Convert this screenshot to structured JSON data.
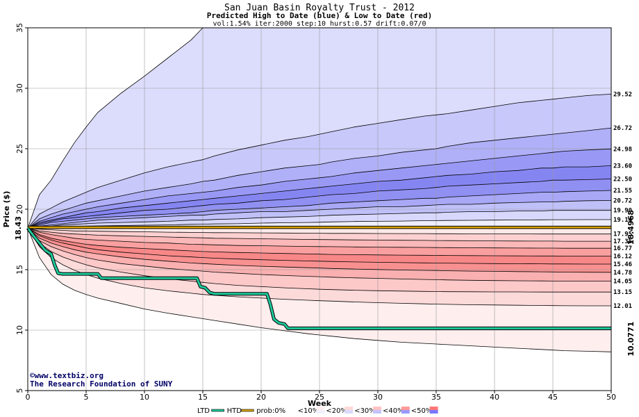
{
  "chart_data": {
    "type": "area",
    "title": "San Juan Basin Royalty Trust - 2012",
    "subtitle": "Predicted High to Date (blue) &  Low to Date (red)",
    "params": "vol:1.54% iter:2000 step:10 hurst:0.57 drift:0.07/0",
    "xlabel": "Week",
    "ylabel": "Price ($)",
    "xlim": [
      0,
      50
    ],
    "ylim": [
      5,
      35
    ],
    "xticks": [
      0,
      5,
      10,
      15,
      20,
      25,
      30,
      35,
      40,
      45,
      50
    ],
    "yticks": [
      5,
      10,
      15,
      20,
      25,
      30,
      35
    ],
    "grid": true,
    "start_price": 18.43,
    "start_label": "18.43",
    "x": [
      0,
      1,
      2,
      3,
      4,
      5,
      6,
      8,
      10,
      12,
      14,
      15,
      16,
      18,
      20,
      22,
      24,
      25,
      26,
      28,
      30,
      32,
      34,
      35,
      36,
      38,
      40,
      42,
      44,
      45,
      46,
      48,
      50
    ],
    "high_bands": [
      {
        "label": "35.00",
        "values": [
          18.43,
          21.2,
          22.4,
          24.0,
          25.5,
          26.8,
          28.0,
          29.6,
          31.0,
          32.5,
          34.0,
          35.0,
          35.0,
          35.0,
          35.0,
          35.0,
          35.0,
          35.0,
          35.0,
          35.0,
          35.0,
          35.0,
          35.0,
          35.0,
          35.0,
          35.0,
          35.0,
          35.0,
          35.0,
          35.0,
          35.0,
          35.0,
          35.0
        ]
      },
      {
        "label": "29.52",
        "values": [
          18.43,
          19.6,
          20.1,
          20.6,
          21.0,
          21.4,
          21.8,
          22.4,
          23.0,
          23.5,
          23.9,
          24.1,
          24.4,
          24.9,
          25.3,
          25.7,
          26.0,
          26.2,
          26.4,
          26.8,
          27.1,
          27.4,
          27.7,
          27.8,
          27.9,
          28.2,
          28.5,
          28.8,
          29.0,
          29.1,
          29.2,
          29.4,
          29.52
        ]
      },
      {
        "label": "26.72",
        "values": [
          18.43,
          19.2,
          19.6,
          19.9,
          20.2,
          20.5,
          20.7,
          21.1,
          21.5,
          21.8,
          22.1,
          22.3,
          22.4,
          22.8,
          23.1,
          23.4,
          23.6,
          23.7,
          23.9,
          24.2,
          24.4,
          24.7,
          24.9,
          25.0,
          25.2,
          25.5,
          25.7,
          25.9,
          26.1,
          26.2,
          26.3,
          26.5,
          26.72
        ]
      },
      {
        "label": "24.98",
        "values": [
          18.43,
          19.0,
          19.3,
          19.6,
          19.8,
          20.0,
          20.2,
          20.5,
          20.8,
          21.1,
          21.3,
          21.4,
          21.5,
          21.8,
          22.0,
          22.3,
          22.5,
          22.6,
          22.7,
          23.0,
          23.2,
          23.4,
          23.6,
          23.7,
          23.8,
          24.0,
          24.2,
          24.4,
          24.6,
          24.7,
          24.8,
          24.9,
          24.98
        ]
      },
      {
        "label": "23.60",
        "values": [
          18.43,
          18.9,
          19.1,
          19.3,
          19.5,
          19.7,
          19.8,
          20.1,
          20.3,
          20.5,
          20.7,
          20.8,
          20.9,
          21.1,
          21.3,
          21.5,
          21.7,
          21.8,
          21.9,
          22.1,
          22.3,
          22.4,
          22.6,
          22.7,
          22.8,
          22.9,
          23.1,
          23.2,
          23.4,
          23.4,
          23.5,
          23.5,
          23.6
        ]
      },
      {
        "label": "22.50",
        "values": [
          18.43,
          18.8,
          19.0,
          19.2,
          19.3,
          19.4,
          19.5,
          19.7,
          19.9,
          20.0,
          20.2,
          20.3,
          20.4,
          20.5,
          20.7,
          20.8,
          21.0,
          21.1,
          21.2,
          21.3,
          21.5,
          21.6,
          21.7,
          21.8,
          21.9,
          22.0,
          22.1,
          22.2,
          22.3,
          22.4,
          22.4,
          22.45,
          22.5
        ]
      },
      {
        "label": "21.55",
        "values": [
          18.43,
          18.7,
          18.9,
          19.0,
          19.1,
          19.2,
          19.3,
          19.4,
          19.5,
          19.6,
          19.7,
          19.8,
          19.9,
          20.0,
          20.1,
          20.2,
          20.3,
          20.4,
          20.5,
          20.6,
          20.7,
          20.8,
          20.9,
          20.9,
          21.0,
          21.1,
          21.2,
          21.3,
          21.4,
          21.4,
          21.45,
          21.5,
          21.55
        ]
      },
      {
        "label": "20.72",
        "values": [
          18.43,
          18.6,
          18.7,
          18.8,
          18.9,
          19.0,
          19.1,
          19.2,
          19.3,
          19.4,
          19.5,
          19.5,
          19.6,
          19.7,
          19.8,
          19.8,
          19.9,
          19.95,
          20.0,
          20.1,
          20.2,
          20.2,
          20.3,
          20.35,
          20.4,
          20.4,
          20.5,
          20.55,
          20.6,
          20.6,
          20.65,
          20.7,
          20.72
        ]
      },
      {
        "label": "19.90",
        "values": [
          18.43,
          18.5,
          18.6,
          18.7,
          18.75,
          18.8,
          18.85,
          18.9,
          18.95,
          19.0,
          19.1,
          19.1,
          19.15,
          19.2,
          19.3,
          19.35,
          19.4,
          19.45,
          19.5,
          19.55,
          19.6,
          19.65,
          19.7,
          19.7,
          19.75,
          19.8,
          19.8,
          19.85,
          19.85,
          19.9,
          19.9,
          19.9,
          19.9
        ]
      },
      {
        "label": "19.14",
        "values": [
          18.43,
          18.45,
          18.5,
          18.55,
          18.6,
          18.6,
          18.62,
          18.65,
          18.68,
          18.7,
          18.75,
          18.76,
          18.78,
          18.8,
          18.85,
          18.88,
          18.9,
          18.92,
          18.95,
          18.98,
          19.0,
          19.02,
          19.05,
          19.06,
          19.07,
          19.08,
          19.1,
          19.11,
          19.12,
          19.13,
          19.13,
          19.14,
          19.14
        ]
      }
    ],
    "low_bands": [
      {
        "label": "17.95",
        "values": [
          18.43,
          18.35,
          18.3,
          18.25,
          18.2,
          18.2,
          18.18,
          18.15,
          18.13,
          18.1,
          18.08,
          18.07,
          18.06,
          18.05,
          18.04,
          18.03,
          18.02,
          18.01,
          18.0,
          18.0,
          17.99,
          17.98,
          17.98,
          17.97,
          17.97,
          17.96,
          17.96,
          17.96,
          17.95,
          17.95,
          17.95,
          17.95,
          17.95
        ]
      },
      {
        "label": "17.35",
        "values": [
          18.43,
          18.2,
          18.1,
          18.0,
          17.95,
          17.9,
          17.85,
          17.8,
          17.75,
          17.7,
          17.65,
          17.63,
          17.6,
          17.58,
          17.55,
          17.53,
          17.5,
          17.49,
          17.48,
          17.46,
          17.45,
          17.43,
          17.42,
          17.41,
          17.4,
          17.39,
          17.38,
          17.37,
          17.36,
          17.36,
          17.35,
          17.35,
          17.35
        ]
      },
      {
        "label": "16.77",
        "values": [
          18.43,
          18.1,
          17.9,
          17.75,
          17.6,
          17.5,
          17.45,
          17.35,
          17.25,
          17.2,
          17.1,
          17.08,
          17.05,
          17.0,
          16.98,
          16.95,
          16.92,
          16.91,
          16.9,
          16.88,
          16.86,
          16.85,
          16.84,
          16.83,
          16.82,
          16.81,
          16.8,
          16.79,
          16.78,
          16.78,
          16.77,
          16.77,
          16.77
        ]
      },
      {
        "label": "16.12",
        "values": [
          18.43,
          17.9,
          17.6,
          17.4,
          17.25,
          17.1,
          17.0,
          16.85,
          16.75,
          16.65,
          16.55,
          16.5,
          16.47,
          16.42,
          16.38,
          16.34,
          16.3,
          16.28,
          16.26,
          16.24,
          16.22,
          16.2,
          16.19,
          16.18,
          16.17,
          16.16,
          16.15,
          16.14,
          16.13,
          16.13,
          16.12,
          16.12,
          16.12
        ]
      },
      {
        "label": "15.46",
        "values": [
          18.43,
          17.8,
          17.45,
          17.2,
          17.0,
          16.8,
          16.65,
          16.45,
          16.3,
          16.15,
          16.05,
          16.0,
          15.95,
          15.88,
          15.82,
          15.77,
          15.72,
          15.7,
          15.68,
          15.64,
          15.61,
          15.58,
          15.56,
          15.55,
          15.54,
          15.52,
          15.5,
          15.49,
          15.48,
          15.47,
          15.47,
          15.46,
          15.46
        ]
      },
      {
        "label": "14.78",
        "values": [
          18.43,
          17.6,
          17.2,
          16.9,
          16.65,
          16.45,
          16.3,
          16.05,
          15.85,
          15.7,
          15.55,
          15.5,
          15.45,
          15.35,
          15.28,
          15.22,
          15.16,
          15.13,
          15.1,
          15.05,
          15.01,
          14.97,
          14.94,
          14.93,
          14.91,
          14.88,
          14.86,
          14.84,
          14.82,
          14.81,
          14.8,
          14.79,
          14.78
        ]
      },
      {
        "label": "14.05",
        "values": [
          18.43,
          17.4,
          16.9,
          16.55,
          16.25,
          16.0,
          15.8,
          15.5,
          15.3,
          15.1,
          14.95,
          14.88,
          14.8,
          14.7,
          14.6,
          14.52,
          14.45,
          14.42,
          14.38,
          14.32,
          14.28,
          14.23,
          14.19,
          14.17,
          14.15,
          14.12,
          14.1,
          14.08,
          14.07,
          14.06,
          14.06,
          14.05,
          14.05
        ]
      },
      {
        "label": "13.15",
        "values": [
          18.43,
          17.2,
          16.5,
          16.05,
          15.7,
          15.4,
          15.15,
          14.8,
          14.5,
          14.25,
          14.05,
          13.95,
          13.85,
          13.7,
          13.6,
          13.5,
          13.42,
          13.38,
          13.35,
          13.3,
          13.26,
          13.23,
          13.2,
          13.19,
          13.18,
          13.17,
          13.16,
          13.16,
          13.15,
          13.15,
          13.15,
          13.15,
          13.15
        ]
      },
      {
        "label": "12.01",
        "values": [
          18.43,
          16.9,
          16.0,
          15.4,
          14.95,
          14.6,
          14.3,
          13.85,
          13.5,
          13.25,
          13.05,
          12.95,
          12.88,
          12.75,
          12.65,
          12.55,
          12.47,
          12.43,
          12.4,
          12.33,
          12.27,
          12.22,
          12.17,
          12.15,
          12.13,
          12.1,
          12.08,
          12.06,
          12.04,
          12.03,
          12.02,
          12.01,
          12.01
        ]
      },
      {
        "label": "8.20",
        "values": [
          18.43,
          16.0,
          14.6,
          13.8,
          13.3,
          12.95,
          12.65,
          12.2,
          11.75,
          11.4,
          11.1,
          10.95,
          10.8,
          10.5,
          10.2,
          9.95,
          9.7,
          9.6,
          9.5,
          9.3,
          9.15,
          9.0,
          8.9,
          8.85,
          8.8,
          8.7,
          8.6,
          8.5,
          8.4,
          8.35,
          8.3,
          8.25,
          8.2
        ]
      }
    ],
    "ltd_series": {
      "x": [
        0,
        0.5,
        1,
        1.5,
        2,
        2.3,
        2.6,
        3,
        6,
        6.3,
        7,
        14.5,
        14.8,
        15.2,
        15.6,
        16,
        20.5,
        20.8,
        21.1,
        21.5,
        22,
        22.3,
        50
      ],
      "y": [
        18.43,
        17.8,
        17.2,
        16.6,
        16.3,
        15.4,
        14.7,
        14.65,
        14.65,
        14.3,
        14.3,
        14.3,
        13.6,
        13.5,
        13.1,
        13.0,
        13.0,
        12.1,
        10.9,
        10.6,
        10.5,
        10.15,
        10.15
      ]
    },
    "htd_series": {
      "x": [
        0,
        50
      ],
      "y": [
        18.4968,
        18.4968
      ]
    },
    "end_label_high": "18.4968",
    "end_label_low": "10.0771",
    "credit": [
      "©www.textbiz.org",
      "The Research Foundation of SUNY"
    ],
    "legend": {
      "items": [
        {
          "label": "LTD",
          "kind": "line",
          "color": "#1ec89a"
        },
        {
          "label": "HTD",
          "kind": "line",
          "color": "#d9a400"
        },
        {
          "label": "prob:0%",
          "kind": "swatch",
          "colors": [
            "#ffffff",
            "#ffffff"
          ]
        },
        {
          "label": "<10%",
          "kind": "swatch",
          "colors": [
            "#fff0f0",
            "#f0f0ff"
          ]
        },
        {
          "label": "<20%",
          "kind": "swatch",
          "colors": [
            "#ffd9d9",
            "#d9d9ff"
          ]
        },
        {
          "label": "<30%",
          "kind": "swatch",
          "colors": [
            "#ffc2c2",
            "#c2c2ff"
          ]
        },
        {
          "label": "<40%",
          "kind": "swatch",
          "colors": [
            "#ff9999",
            "#9999ff"
          ]
        },
        {
          "label": "<50%",
          "kind": "swatch",
          "colors": [
            "#ff7777",
            "#7777ff"
          ]
        }
      ]
    },
    "colors": {
      "high_fills": [
        "#eeeefe",
        "#dcdcfc",
        "#c8c8fb",
        "#b0b0f8",
        "#9999f5",
        "#8585f2",
        "#9090f3",
        "#a8a8f6",
        "#c0c0f9",
        "#d8d8fc"
      ],
      "low_fills": [
        "#fde8e8",
        "#fcd0d0",
        "#fbb8b8",
        "#fa9f9f",
        "#f88787",
        "#f99090",
        "#fab0b0",
        "#fcc8c8",
        "#fddada",
        "#feeeee"
      ],
      "ltd": "#1ec89a",
      "htd": "#d9a400",
      "start_label": "#000000",
      "end_high": "#b58a00",
      "end_low": "#0f9a6e"
    }
  }
}
